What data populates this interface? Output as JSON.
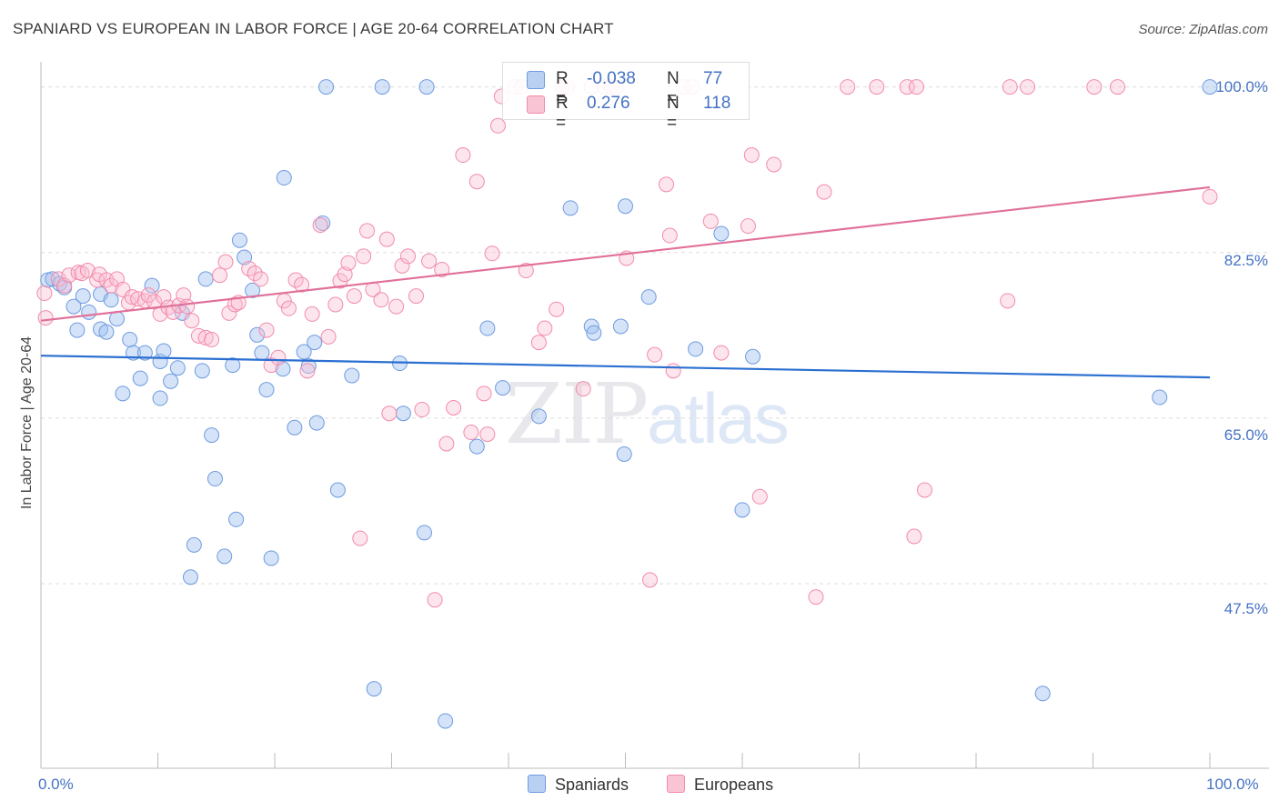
{
  "title": "SPANIARD VS EUROPEAN IN LABOR FORCE | AGE 20-64 CORRELATION CHART",
  "source": "Source: ZipAtlas.com",
  "watermark": {
    "part1": "ZIP",
    "part2": "atlas"
  },
  "legend": {
    "rows": [
      {
        "r_key": "R =",
        "r_val": "-0.038",
        "n_key": "N =",
        "n_val": "77",
        "color": "#6f9be0"
      },
      {
        "r_key": "R =",
        "r_val": "0.276",
        "n_key": "N =",
        "n_val": "118",
        "color": "#f28bab"
      }
    ]
  },
  "bottom_legend": [
    "Spaniards",
    "Europeans"
  ],
  "chart_data": {
    "type": "scatter",
    "title": "SPANIARD VS EUROPEAN IN LABOR FORCE | AGE 20-64 CORRELATION CHART",
    "xlabel": "",
    "ylabel": "In Labor Force | Age 20-64",
    "xlim": [
      0,
      100
    ],
    "ylim": [
      28,
      101.5
    ],
    "x_tick_labels": [
      "0.0%",
      "100.0%"
    ],
    "y_ticks": [
      47.5,
      65.0,
      82.5,
      100.0
    ],
    "y_tick_labels": [
      "47.5%",
      "65.0%",
      "82.5%",
      "100.0%"
    ],
    "grid": true,
    "legend_position": "top-center",
    "colors": {
      "spaniards": "#6f9be0",
      "europeans": "#f28bab",
      "spaniards_line": "#2a6fd1",
      "europeans_line": "#e0709a"
    },
    "series": [
      {
        "name": "Spaniards",
        "R": -0.038,
        "N": 77,
        "trend": [
          [
            0,
            71.6
          ],
          [
            100,
            69.3
          ]
        ],
        "points": [
          [
            0.6,
            79.6
          ],
          [
            1.0,
            79.7
          ],
          [
            1.6,
            79.2
          ],
          [
            2.0,
            78.8
          ],
          [
            2.8,
            76.8
          ],
          [
            3.1,
            74.3
          ],
          [
            3.6,
            77.9
          ],
          [
            4.1,
            76.2
          ],
          [
            5.1,
            78.1
          ],
          [
            5.1,
            74.4
          ],
          [
            5.6,
            74.1
          ],
          [
            6.0,
            77.5
          ],
          [
            6.5,
            75.5
          ],
          [
            7.0,
            67.6
          ],
          [
            7.6,
            73.3
          ],
          [
            7.9,
            71.9
          ],
          [
            8.5,
            69.2
          ],
          [
            8.9,
            71.9
          ],
          [
            9.5,
            79.0
          ],
          [
            10.2,
            71.0
          ],
          [
            10.2,
            67.1
          ],
          [
            10.5,
            72.1
          ],
          [
            11.1,
            68.9
          ],
          [
            11.7,
            70.3
          ],
          [
            12.1,
            76.1
          ],
          [
            12.8,
            48.2
          ],
          [
            13.1,
            51.6
          ],
          [
            13.8,
            70.0
          ],
          [
            14.1,
            79.7
          ],
          [
            14.6,
            63.2
          ],
          [
            14.9,
            58.6
          ],
          [
            15.7,
            50.4
          ],
          [
            16.4,
            70.6
          ],
          [
            16.7,
            54.3
          ],
          [
            17.0,
            83.8
          ],
          [
            17.4,
            82.0
          ],
          [
            18.1,
            78.5
          ],
          [
            18.5,
            73.8
          ],
          [
            18.9,
            71.9
          ],
          [
            19.3,
            68.0
          ],
          [
            19.7,
            50.2
          ],
          [
            20.8,
            90.4
          ],
          [
            20.7,
            70.2
          ],
          [
            21.7,
            64.0
          ],
          [
            22.5,
            72.0
          ],
          [
            22.9,
            70.5
          ],
          [
            23.4,
            73.0
          ],
          [
            23.6,
            64.5
          ],
          [
            24.1,
            85.6
          ],
          [
            24.4,
            100.0
          ],
          [
            25.4,
            57.4
          ],
          [
            26.6,
            69.5
          ],
          [
            28.5,
            36.4
          ],
          [
            29.2,
            100.0
          ],
          [
            30.7,
            70.8
          ],
          [
            31.0,
            65.5
          ],
          [
            32.8,
            52.9
          ],
          [
            33.0,
            100.0
          ],
          [
            34.6,
            33.0
          ],
          [
            37.3,
            62.0
          ],
          [
            38.2,
            74.5
          ],
          [
            39.5,
            68.2
          ],
          [
            42.6,
            65.2
          ],
          [
            45.3,
            87.2
          ],
          [
            47.1,
            74.7
          ],
          [
            47.3,
            74.0
          ],
          [
            49.6,
            74.7
          ],
          [
            49.9,
            61.2
          ],
          [
            50.0,
            87.4
          ],
          [
            52.0,
            77.8
          ],
          [
            56.0,
            72.3
          ],
          [
            58.2,
            84.5
          ],
          [
            60.0,
            55.3
          ],
          [
            60.9,
            71.5
          ],
          [
            85.7,
            35.9
          ],
          [
            95.7,
            67.2
          ],
          [
            100.0,
            100.0
          ]
        ]
      },
      {
        "name": "Europeans",
        "R": 0.276,
        "N": 118,
        "trend": [
          [
            0,
            75.3
          ],
          [
            100,
            89.4
          ]
        ],
        "points": [
          [
            0.3,
            78.2
          ],
          [
            0.4,
            75.6
          ],
          [
            1.5,
            79.7
          ],
          [
            2.0,
            79.0
          ],
          [
            2.4,
            80.1
          ],
          [
            3.2,
            80.4
          ],
          [
            3.5,
            80.3
          ],
          [
            4.0,
            80.6
          ],
          [
            4.8,
            79.6
          ],
          [
            5.0,
            80.2
          ],
          [
            5.6,
            79.6
          ],
          [
            6.0,
            79.0
          ],
          [
            6.5,
            79.7
          ],
          [
            7.0,
            78.6
          ],
          [
            7.5,
            77.2
          ],
          [
            7.8,
            77.8
          ],
          [
            8.3,
            77.6
          ],
          [
            8.9,
            77.4
          ],
          [
            9.2,
            78.0
          ],
          [
            9.7,
            77.3
          ],
          [
            10.2,
            76.0
          ],
          [
            10.5,
            77.8
          ],
          [
            10.9,
            76.7
          ],
          [
            11.3,
            76.2
          ],
          [
            11.8,
            76.9
          ],
          [
            12.2,
            78.0
          ],
          [
            12.5,
            76.8
          ],
          [
            12.9,
            75.3
          ],
          [
            13.5,
            73.7
          ],
          [
            14.1,
            73.5
          ],
          [
            14.6,
            73.3
          ],
          [
            15.3,
            80.1
          ],
          [
            15.8,
            81.5
          ],
          [
            16.1,
            76.1
          ],
          [
            16.6,
            77.0
          ],
          [
            16.9,
            77.2
          ],
          [
            17.8,
            80.8
          ],
          [
            18.3,
            80.3
          ],
          [
            18.8,
            79.7
          ],
          [
            19.3,
            74.3
          ],
          [
            19.7,
            70.6
          ],
          [
            20.3,
            71.4
          ],
          [
            20.8,
            77.4
          ],
          [
            21.2,
            76.6
          ],
          [
            21.8,
            79.6
          ],
          [
            22.3,
            79.1
          ],
          [
            22.8,
            70.0
          ],
          [
            23.2,
            76.0
          ],
          [
            23.9,
            85.4
          ],
          [
            24.6,
            73.6
          ],
          [
            25.2,
            77.0
          ],
          [
            25.6,
            79.5
          ],
          [
            26.0,
            80.2
          ],
          [
            26.3,
            81.4
          ],
          [
            26.8,
            77.9
          ],
          [
            27.3,
            52.3
          ],
          [
            27.6,
            82.1
          ],
          [
            27.9,
            84.8
          ],
          [
            28.4,
            78.6
          ],
          [
            29.1,
            77.5
          ],
          [
            29.6,
            83.9
          ],
          [
            29.8,
            65.5
          ],
          [
            30.4,
            76.8
          ],
          [
            30.9,
            81.1
          ],
          [
            31.4,
            82.1
          ],
          [
            32.1,
            77.9
          ],
          [
            32.6,
            65.9
          ],
          [
            33.2,
            81.6
          ],
          [
            33.7,
            45.8
          ],
          [
            34.3,
            80.7
          ],
          [
            34.7,
            62.3
          ],
          [
            35.3,
            66.1
          ],
          [
            36.1,
            92.8
          ],
          [
            36.8,
            63.5
          ],
          [
            37.3,
            90.0
          ],
          [
            37.9,
            67.6
          ],
          [
            38.2,
            63.3
          ],
          [
            38.6,
            82.4
          ],
          [
            39.1,
            95.9
          ],
          [
            39.4,
            99.0
          ],
          [
            40.6,
            100.0
          ],
          [
            41.1,
            100.0
          ],
          [
            41.5,
            80.6
          ],
          [
            42.6,
            73.0
          ],
          [
            43.1,
            74.5
          ],
          [
            44.1,
            76.5
          ],
          [
            44.6,
            100.0
          ],
          [
            45.0,
            100.0
          ],
          [
            46.4,
            68.1
          ],
          [
            47.1,
            100.0
          ],
          [
            48.2,
            100.0
          ],
          [
            48.8,
            100.0
          ],
          [
            49.2,
            100.0
          ],
          [
            50.1,
            81.9
          ],
          [
            52.1,
            47.9
          ],
          [
            52.5,
            71.7
          ],
          [
            53.5,
            89.7
          ],
          [
            53.8,
            84.3
          ],
          [
            54.1,
            70.0
          ],
          [
            55.0,
            100.0
          ],
          [
            55.7,
            100.0
          ],
          [
            57.3,
            85.8
          ],
          [
            58.2,
            71.9
          ],
          [
            60.5,
            85.3
          ],
          [
            60.8,
            92.8
          ],
          [
            61.5,
            56.7
          ],
          [
            62.7,
            91.8
          ],
          [
            66.3,
            46.1
          ],
          [
            67.0,
            88.9
          ],
          [
            69.0,
            100.0
          ],
          [
            71.5,
            100.0
          ],
          [
            74.1,
            100.0
          ],
          [
            74.7,
            52.5
          ],
          [
            74.9,
            100.0
          ],
          [
            75.6,
            57.4
          ],
          [
            82.7,
            77.4
          ],
          [
            82.9,
            100.0
          ],
          [
            84.4,
            100.0
          ],
          [
            90.1,
            100.0
          ],
          [
            92.1,
            100.0
          ],
          [
            100.0,
            88.4
          ]
        ]
      }
    ]
  }
}
